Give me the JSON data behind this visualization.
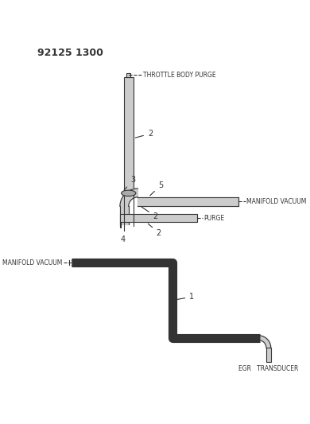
{
  "title_part": "92125 1300",
  "background_color": "#ffffff",
  "line_color": "#333333",
  "gray_fill": "#cccccc",
  "figsize": [
    3.9,
    5.33
  ],
  "dpi": 100,
  "labels": {
    "throttle_body_purge": "THROTTLE BODY PURGE",
    "manifold_vacuum_top": "MANIFOLD VACUUM",
    "purge": "PURGE",
    "manifold_vacuum_bottom": "MANIFOLD VACUUM",
    "egr_transducer": "EGR   TRANSDUCER",
    "n1": "1",
    "n2a": "2",
    "n2b": "2",
    "n2c": "2",
    "n3": "3",
    "n4": "4",
    "n5": "5"
  }
}
